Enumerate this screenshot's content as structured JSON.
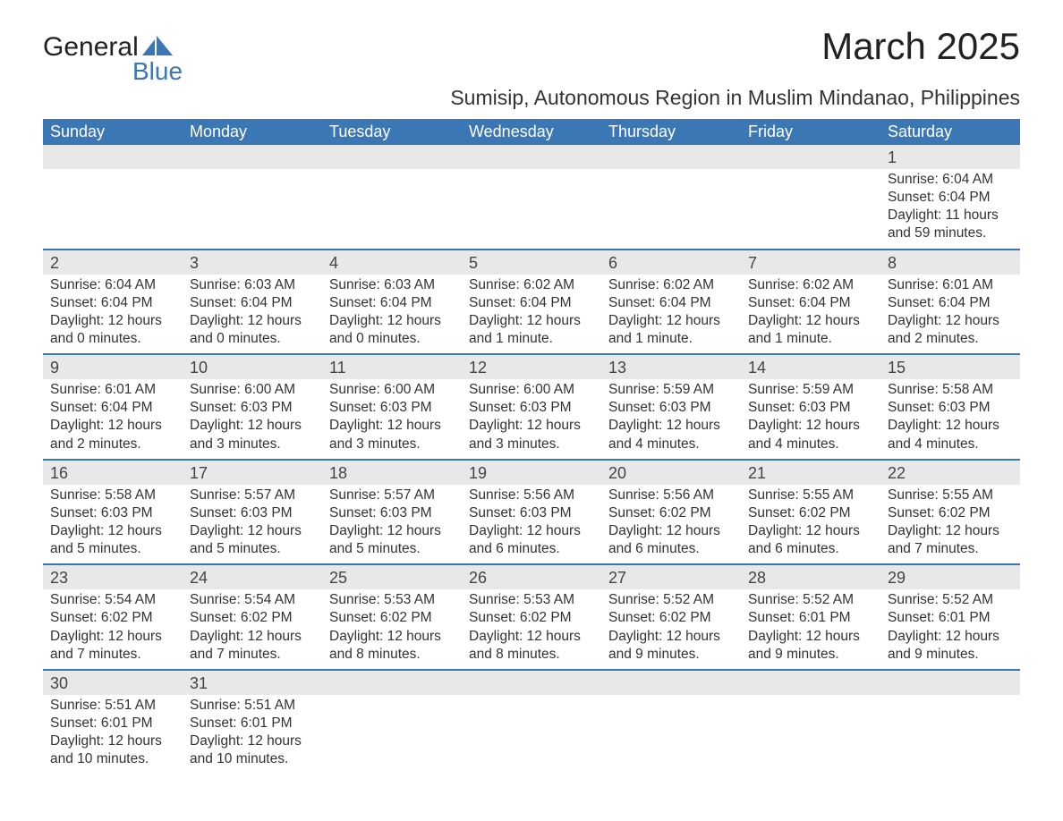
{
  "brand": {
    "word1": "General",
    "word2": "Blue",
    "accent_color": "#3b76b5"
  },
  "title": "March 2025",
  "location": "Sumisip, Autonomous Region in Muslim Mindanao, Philippines",
  "colors": {
    "header_bg": "#3b76b5",
    "header_text": "#ffffff",
    "daynum_bg": "#e8e8e8",
    "row_divider": "#3b76b5",
    "body_text": "#333333"
  },
  "weekdays": [
    "Sunday",
    "Monday",
    "Tuesday",
    "Wednesday",
    "Thursday",
    "Friday",
    "Saturday"
  ],
  "weeks": [
    [
      null,
      null,
      null,
      null,
      null,
      null,
      {
        "day": "1",
        "sunrise": "Sunrise: 6:04 AM",
        "sunset": "Sunset: 6:04 PM",
        "daylight": "Daylight: 11 hours and 59 minutes."
      }
    ],
    [
      {
        "day": "2",
        "sunrise": "Sunrise: 6:04 AM",
        "sunset": "Sunset: 6:04 PM",
        "daylight": "Daylight: 12 hours and 0 minutes."
      },
      {
        "day": "3",
        "sunrise": "Sunrise: 6:03 AM",
        "sunset": "Sunset: 6:04 PM",
        "daylight": "Daylight: 12 hours and 0 minutes."
      },
      {
        "day": "4",
        "sunrise": "Sunrise: 6:03 AM",
        "sunset": "Sunset: 6:04 PM",
        "daylight": "Daylight: 12 hours and 0 minutes."
      },
      {
        "day": "5",
        "sunrise": "Sunrise: 6:02 AM",
        "sunset": "Sunset: 6:04 PM",
        "daylight": "Daylight: 12 hours and 1 minute."
      },
      {
        "day": "6",
        "sunrise": "Sunrise: 6:02 AM",
        "sunset": "Sunset: 6:04 PM",
        "daylight": "Daylight: 12 hours and 1 minute."
      },
      {
        "day": "7",
        "sunrise": "Sunrise: 6:02 AM",
        "sunset": "Sunset: 6:04 PM",
        "daylight": "Daylight: 12 hours and 1 minute."
      },
      {
        "day": "8",
        "sunrise": "Sunrise: 6:01 AM",
        "sunset": "Sunset: 6:04 PM",
        "daylight": "Daylight: 12 hours and 2 minutes."
      }
    ],
    [
      {
        "day": "9",
        "sunrise": "Sunrise: 6:01 AM",
        "sunset": "Sunset: 6:04 PM",
        "daylight": "Daylight: 12 hours and 2 minutes."
      },
      {
        "day": "10",
        "sunrise": "Sunrise: 6:00 AM",
        "sunset": "Sunset: 6:03 PM",
        "daylight": "Daylight: 12 hours and 3 minutes."
      },
      {
        "day": "11",
        "sunrise": "Sunrise: 6:00 AM",
        "sunset": "Sunset: 6:03 PM",
        "daylight": "Daylight: 12 hours and 3 minutes."
      },
      {
        "day": "12",
        "sunrise": "Sunrise: 6:00 AM",
        "sunset": "Sunset: 6:03 PM",
        "daylight": "Daylight: 12 hours and 3 minutes."
      },
      {
        "day": "13",
        "sunrise": "Sunrise: 5:59 AM",
        "sunset": "Sunset: 6:03 PM",
        "daylight": "Daylight: 12 hours and 4 minutes."
      },
      {
        "day": "14",
        "sunrise": "Sunrise: 5:59 AM",
        "sunset": "Sunset: 6:03 PM",
        "daylight": "Daylight: 12 hours and 4 minutes."
      },
      {
        "day": "15",
        "sunrise": "Sunrise: 5:58 AM",
        "sunset": "Sunset: 6:03 PM",
        "daylight": "Daylight: 12 hours and 4 minutes."
      }
    ],
    [
      {
        "day": "16",
        "sunrise": "Sunrise: 5:58 AM",
        "sunset": "Sunset: 6:03 PM",
        "daylight": "Daylight: 12 hours and 5 minutes."
      },
      {
        "day": "17",
        "sunrise": "Sunrise: 5:57 AM",
        "sunset": "Sunset: 6:03 PM",
        "daylight": "Daylight: 12 hours and 5 minutes."
      },
      {
        "day": "18",
        "sunrise": "Sunrise: 5:57 AM",
        "sunset": "Sunset: 6:03 PM",
        "daylight": "Daylight: 12 hours and 5 minutes."
      },
      {
        "day": "19",
        "sunrise": "Sunrise: 5:56 AM",
        "sunset": "Sunset: 6:03 PM",
        "daylight": "Daylight: 12 hours and 6 minutes."
      },
      {
        "day": "20",
        "sunrise": "Sunrise: 5:56 AM",
        "sunset": "Sunset: 6:02 PM",
        "daylight": "Daylight: 12 hours and 6 minutes."
      },
      {
        "day": "21",
        "sunrise": "Sunrise: 5:55 AM",
        "sunset": "Sunset: 6:02 PM",
        "daylight": "Daylight: 12 hours and 6 minutes."
      },
      {
        "day": "22",
        "sunrise": "Sunrise: 5:55 AM",
        "sunset": "Sunset: 6:02 PM",
        "daylight": "Daylight: 12 hours and 7 minutes."
      }
    ],
    [
      {
        "day": "23",
        "sunrise": "Sunrise: 5:54 AM",
        "sunset": "Sunset: 6:02 PM",
        "daylight": "Daylight: 12 hours and 7 minutes."
      },
      {
        "day": "24",
        "sunrise": "Sunrise: 5:54 AM",
        "sunset": "Sunset: 6:02 PM",
        "daylight": "Daylight: 12 hours and 7 minutes."
      },
      {
        "day": "25",
        "sunrise": "Sunrise: 5:53 AM",
        "sunset": "Sunset: 6:02 PM",
        "daylight": "Daylight: 12 hours and 8 minutes."
      },
      {
        "day": "26",
        "sunrise": "Sunrise: 5:53 AM",
        "sunset": "Sunset: 6:02 PM",
        "daylight": "Daylight: 12 hours and 8 minutes."
      },
      {
        "day": "27",
        "sunrise": "Sunrise: 5:52 AM",
        "sunset": "Sunset: 6:02 PM",
        "daylight": "Daylight: 12 hours and 9 minutes."
      },
      {
        "day": "28",
        "sunrise": "Sunrise: 5:52 AM",
        "sunset": "Sunset: 6:01 PM",
        "daylight": "Daylight: 12 hours and 9 minutes."
      },
      {
        "day": "29",
        "sunrise": "Sunrise: 5:52 AM",
        "sunset": "Sunset: 6:01 PM",
        "daylight": "Daylight: 12 hours and 9 minutes."
      }
    ],
    [
      {
        "day": "30",
        "sunrise": "Sunrise: 5:51 AM",
        "sunset": "Sunset: 6:01 PM",
        "daylight": "Daylight: 12 hours and 10 minutes."
      },
      {
        "day": "31",
        "sunrise": "Sunrise: 5:51 AM",
        "sunset": "Sunset: 6:01 PM",
        "daylight": "Daylight: 12 hours and 10 minutes."
      },
      null,
      null,
      null,
      null,
      null
    ]
  ]
}
